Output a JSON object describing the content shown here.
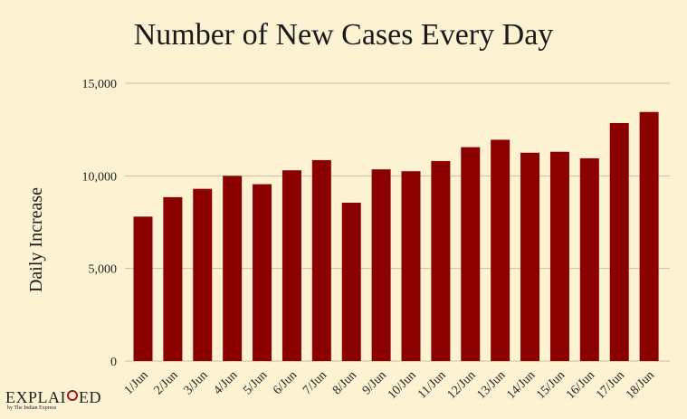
{
  "chart_data": {
    "type": "bar",
    "title": "Number of New Cases Every Day",
    "xlabel": "",
    "ylabel": "Daily Increase",
    "categories": [
      "1/Jun",
      "2/Jun",
      "3/Jun",
      "4/Jun",
      "5/Jun",
      "6/Jun",
      "7/Jun",
      "8/Jun",
      "9/Jun",
      "10/Jun",
      "11/Jun",
      "12/Jun",
      "13/Jun",
      "14/Jun",
      "15/Jun",
      "16/Jun",
      "17/Jun",
      "18/Jun"
    ],
    "values": [
      7800,
      8850,
      9300,
      10000,
      9550,
      10300,
      10850,
      8550,
      10350,
      10250,
      10800,
      11550,
      11950,
      11250,
      11300,
      10950,
      12850,
      13450
    ],
    "ylim": [
      0,
      15000
    ],
    "yticks": [
      0,
      5000,
      10000,
      15000
    ],
    "ytick_labels": [
      "0",
      "5,000",
      "10,000",
      "15,000"
    ],
    "grid": true,
    "bar_color": "#8b0000",
    "grid_color": "#cbbf9f"
  },
  "brand": {
    "name_left": "EXPLAI",
    "name_right": "ED",
    "sub": "by The Indian Express",
    "mark_color": "#a01818"
  }
}
